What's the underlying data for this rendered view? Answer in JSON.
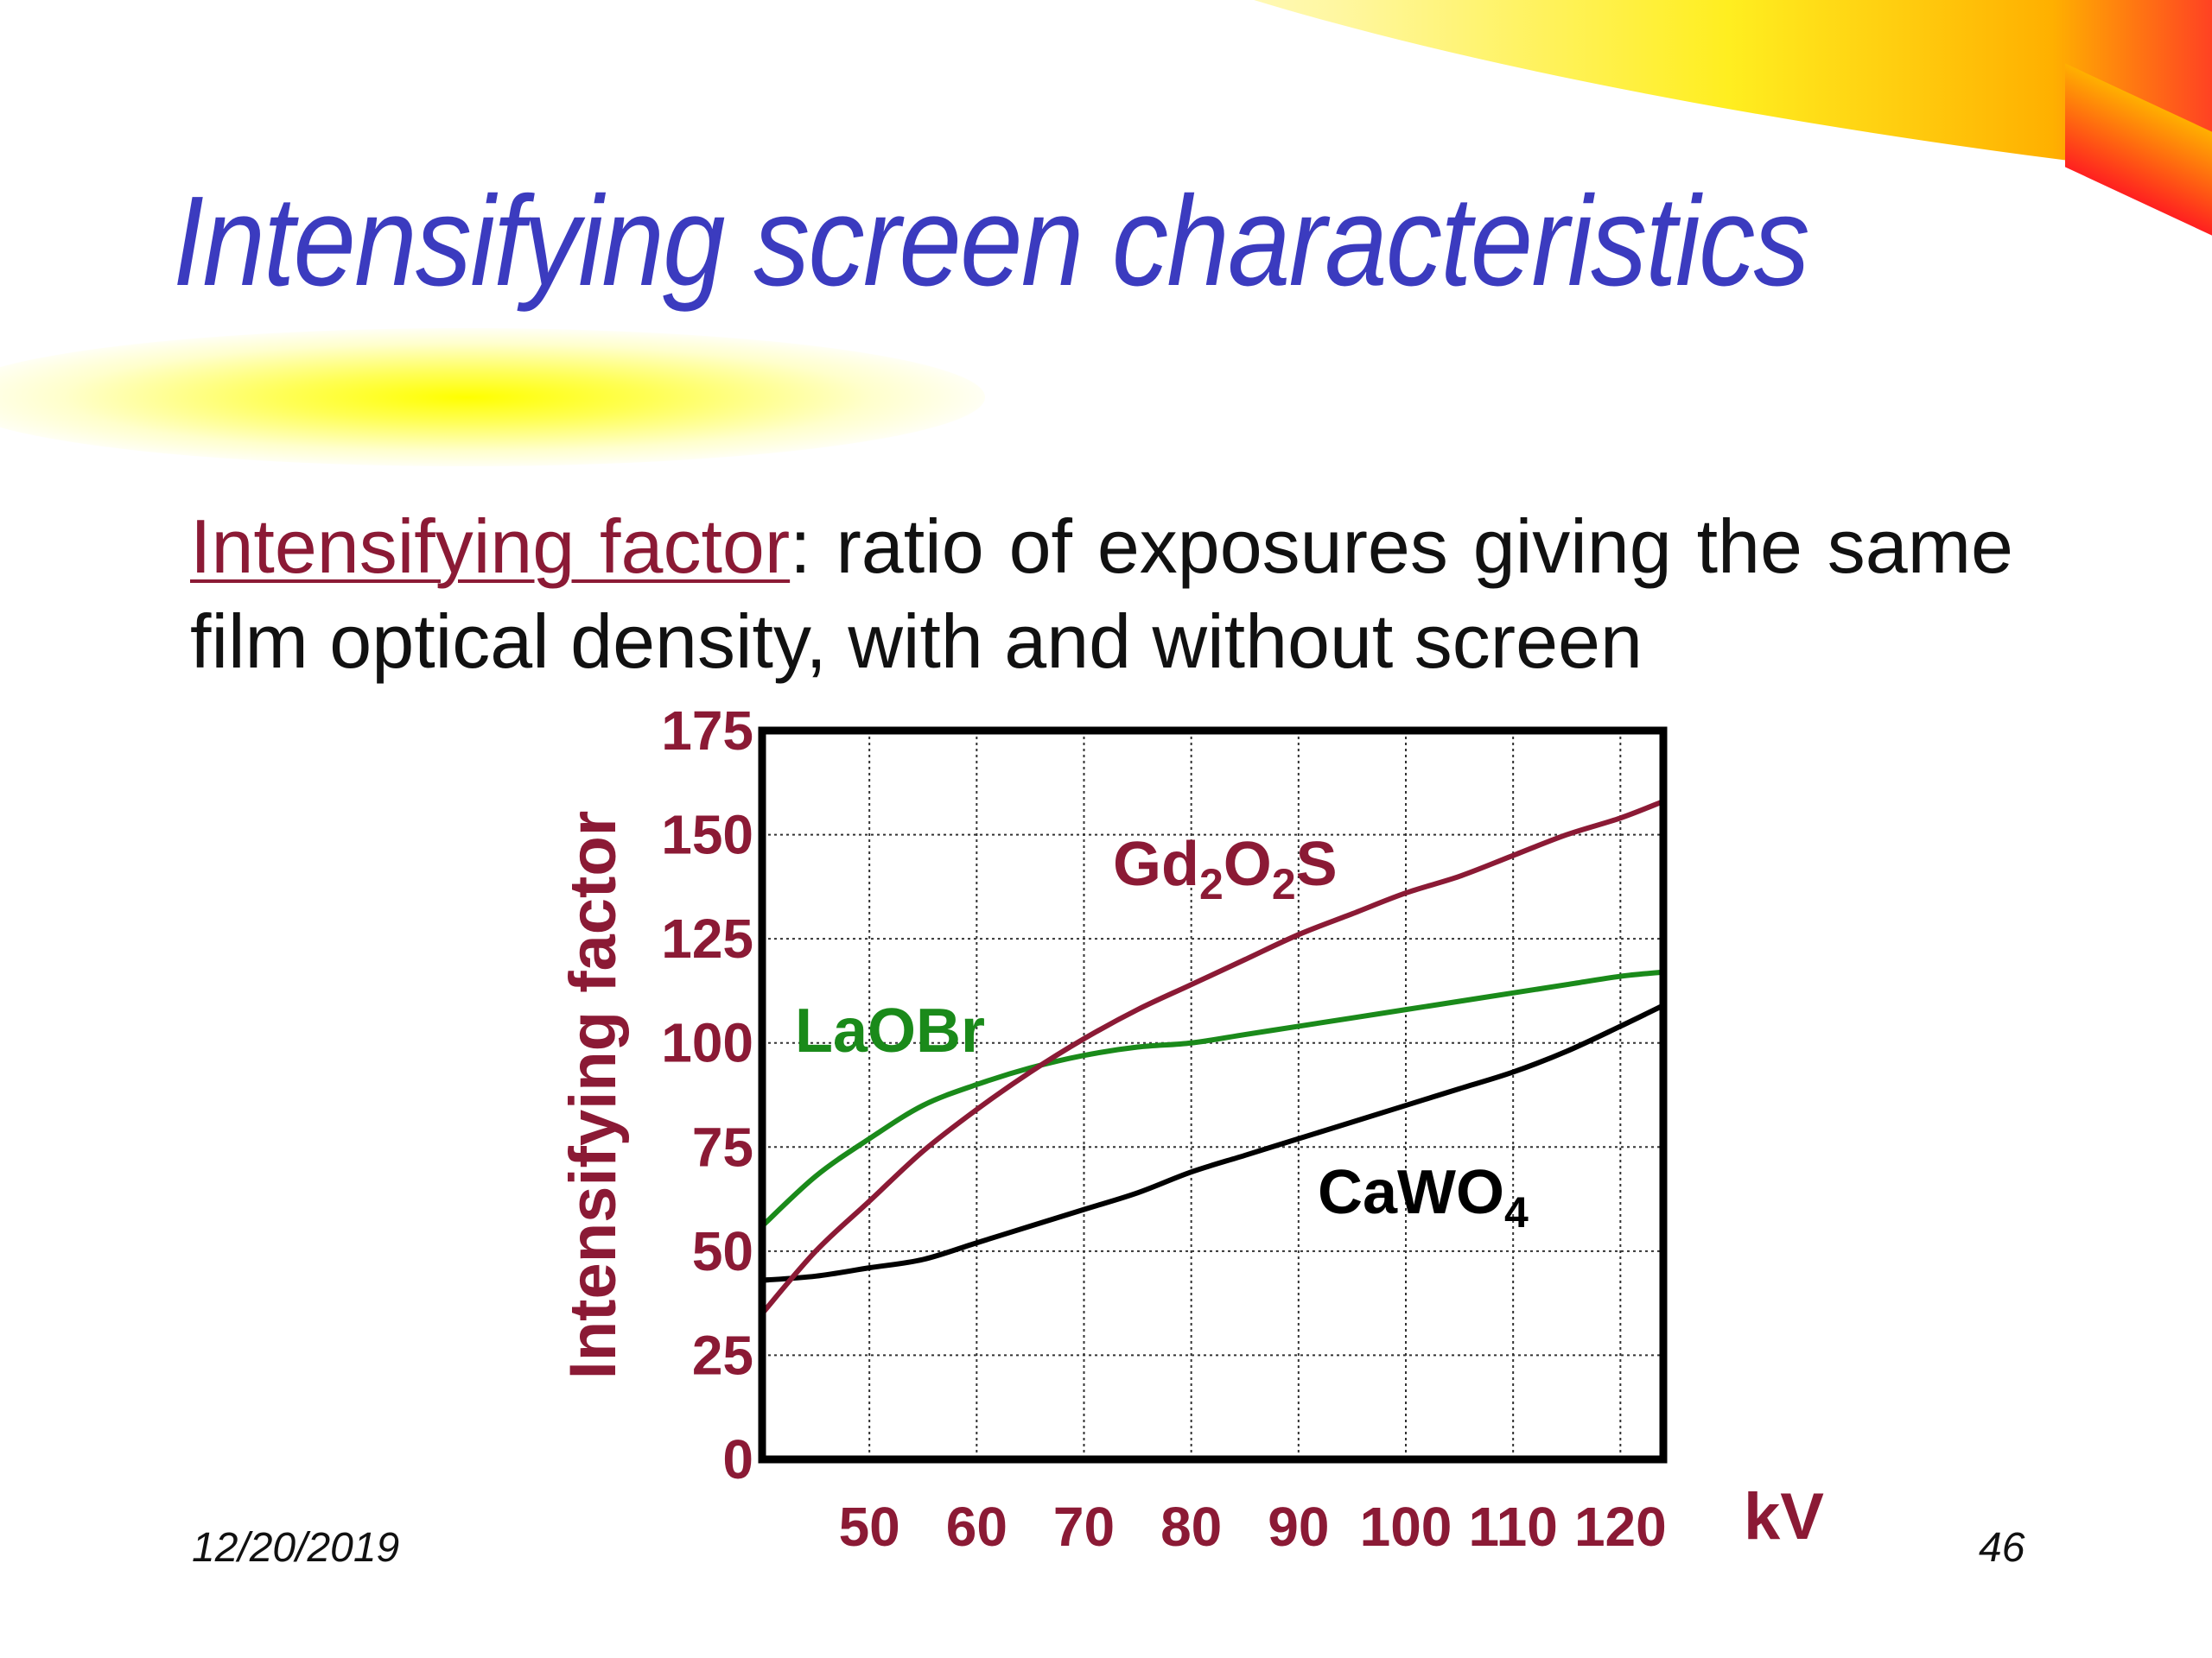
{
  "slide": {
    "title": "Intensifying screen characteristics",
    "definition_term": "Intensifying factor",
    "definition_text": ": ratio of exposures giving the same film optical density, with and without screen",
    "footer_date": "12/20/2019",
    "page_number": "46"
  },
  "colors": {
    "title": "#3b3bbf",
    "axis_text": "#8b1a35",
    "Gd2O2S": "#8b1a35",
    "LaOBr": "#1a8a1a",
    "CaWO4": "#000000"
  },
  "chart_data": {
    "type": "line",
    "xlabel": "kV",
    "ylabel": "Intensifying factor",
    "xlim": [
      40,
      124
    ],
    "ylim": [
      0,
      175
    ],
    "x_ticks": [
      "50",
      "60",
      "70",
      "80",
      "90",
      "100",
      "110",
      "120"
    ],
    "y_ticks": [
      "175",
      "150",
      "125",
      "100",
      "75",
      "50",
      "25",
      "0"
    ],
    "grid": true,
    "series": [
      {
        "name": "Gd2O2S",
        "label_main": "Gd",
        "label_parts": [
          "Gd",
          "2",
          "O",
          "2",
          "S"
        ],
        "color": "#8b1a35",
        "x": [
          40,
          45,
          50,
          55,
          60,
          65,
          70,
          75,
          80,
          85,
          90,
          95,
          100,
          105,
          110,
          115,
          120,
          124
        ],
        "y": [
          35,
          50,
          62,
          74,
          84,
          93,
          101,
          108,
          114,
          120,
          126,
          131,
          136,
          140,
          145,
          150,
          154,
          158
        ]
      },
      {
        "name": "LaOBr",
        "label_parts": [
          "LaOBr"
        ],
        "color": "#1a8a1a",
        "x": [
          40,
          45,
          50,
          55,
          60,
          65,
          70,
          75,
          80,
          85,
          90,
          95,
          100,
          105,
          110,
          115,
          120,
          124
        ],
        "y": [
          56,
          68,
          77,
          85,
          90,
          94,
          97,
          99,
          100,
          102,
          104,
          106,
          108,
          110,
          112,
          114,
          116,
          117
        ]
      },
      {
        "name": "CaWO4",
        "label_parts": [
          "CaWO",
          "4"
        ],
        "color": "#000000",
        "x": [
          40,
          45,
          50,
          55,
          60,
          65,
          70,
          75,
          80,
          85,
          90,
          95,
          100,
          105,
          110,
          115,
          120,
          124
        ],
        "y": [
          43,
          44,
          46,
          48,
          52,
          56,
          60,
          64,
          69,
          73,
          77,
          81,
          85,
          89,
          93,
          98,
          104,
          109
        ]
      }
    ]
  }
}
